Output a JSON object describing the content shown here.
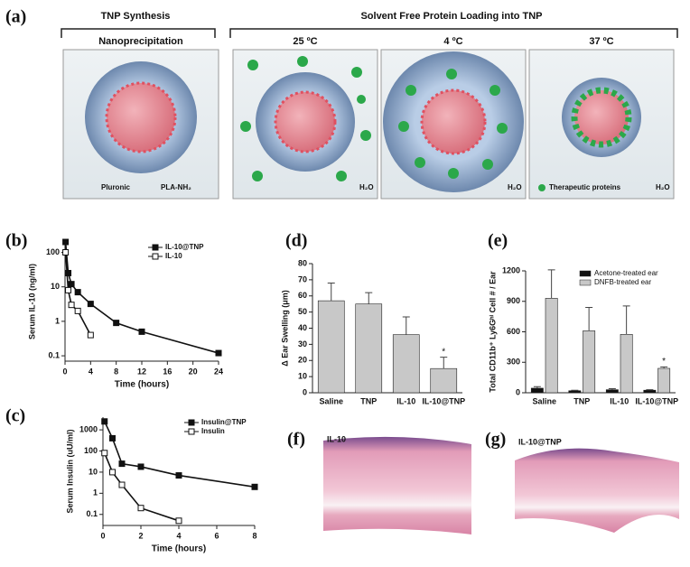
{
  "diagram": {
    "label": "(a)",
    "left_header": "TNP Synthesis",
    "right_header": "Solvent Free Protein Loading into TNP",
    "boxes": [
      {
        "title": "Nanoprecipitation",
        "notes": [
          "Pluronic",
          "PLA-NH₂"
        ]
      },
      {
        "title": "25 ºC",
        "notes": [
          "H₂O"
        ]
      },
      {
        "title": "4 ºC",
        "notes": [
          "H₂O"
        ]
      },
      {
        "title": "37 ºC",
        "notes": [
          "Therapeutic proteins",
          "H₂O"
        ]
      }
    ]
  },
  "images": [
    {
      "label": "(f)",
      "caption": "IL-10"
    },
    {
      "label": "(g)",
      "caption": "IL-10@TNP"
    }
  ],
  "chart_data": [
    {
      "type": "line",
      "label": "(b)",
      "yscale": "log",
      "x_label": "Time (hours)",
      "y_label": "Serum IL-10 (ng/ml)",
      "xlim": [
        0,
        24
      ],
      "xticks": [
        0,
        4,
        8,
        12,
        16,
        20,
        24
      ],
      "ylim": [
        0.07,
        200
      ],
      "yticks": [
        0.1,
        1,
        10,
        100
      ],
      "legend": "upper right",
      "series": [
        {
          "name": "IL-10@TNP",
          "color": "#111111",
          "filled": true,
          "x": [
            0.083,
            0.5,
            1,
            2,
            4,
            8,
            12,
            24
          ],
          "values": [
            200,
            25,
            12,
            7,
            3.2,
            0.9,
            0.5,
            0.12
          ]
        },
        {
          "name": "IL-10",
          "color": "#111111",
          "filled": false,
          "x": [
            0.083,
            0.5,
            1,
            2,
            4
          ],
          "values": [
            100,
            8,
            3,
            2,
            0.4
          ]
        }
      ]
    },
    {
      "type": "line",
      "label": "(c)",
      "yscale": "log",
      "x_label": "Time (hours)",
      "y_label": "Serum Insulin (uU/ml)",
      "xlim": [
        0,
        8
      ],
      "xticks": [
        0,
        2,
        4,
        6,
        8
      ],
      "ylim": [
        0.03,
        4000
      ],
      "yticks": [
        0.1,
        1,
        10,
        100,
        1000
      ],
      "legend": "upper right",
      "series": [
        {
          "name": "Insulin@TNP",
          "color": "#111111",
          "filled": true,
          "x": [
            0.083,
            0.5,
            1,
            2,
            4,
            8
          ],
          "values": [
            2500,
            400,
            25,
            18,
            7,
            2
          ]
        },
        {
          "name": "Insulin",
          "color": "#111111",
          "filled": false,
          "x": [
            0.083,
            0.5,
            1,
            2,
            4
          ],
          "values": [
            80,
            10,
            2.5,
            0.2,
            0.05
          ]
        }
      ]
    },
    {
      "type": "bar",
      "label": "(d)",
      "y_label": "Δ Ear Swelling (μm)",
      "categories": [
        "Saline",
        "TNP",
        "IL-10",
        "IL-10@TNP"
      ],
      "values": [
        57,
        55,
        36,
        15
      ],
      "errors": [
        11,
        7,
        11,
        7
      ],
      "color": "#c8c8c8",
      "ylim": [
        0,
        80
      ],
      "yticks": [
        0,
        10,
        20,
        30,
        40,
        50,
        60,
        70,
        80
      ],
      "annotations": [
        {
          "text": "*",
          "x": "IL-10@TNP"
        }
      ]
    },
    {
      "type": "grouped-bar",
      "label": "(e)",
      "y_label": "Total CD11b⁺ Ly6Gʰⁱ Cell # / Ear",
      "categories": [
        "Saline",
        "TNP",
        "IL-10",
        "IL-10@TNP"
      ],
      "series": [
        {
          "name": "Acetone-treated ear",
          "color": "#111111",
          "values": [
            45,
            20,
            30,
            25
          ],
          "errors": [
            15,
            5,
            10,
            5
          ]
        },
        {
          "name": "DNFB-treated ear",
          "color": "#c8c8c8",
          "values": [
            930,
            610,
            575,
            240
          ],
          "errors": [
            280,
            230,
            280,
            15
          ]
        }
      ],
      "ylim": [
        0,
        1200
      ],
      "yticks": [
        0,
        300,
        600,
        900,
        1200
      ],
      "legend": "upper right",
      "annotations": [
        {
          "text": "*",
          "x": "IL-10@TNP"
        }
      ]
    }
  ]
}
